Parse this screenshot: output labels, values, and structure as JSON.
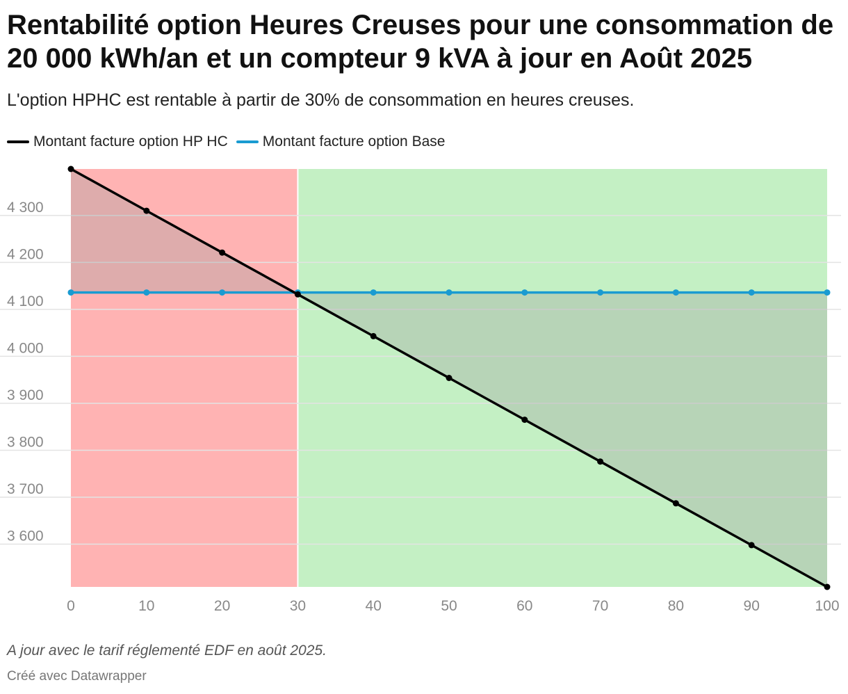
{
  "title": "Rentabilité option Heures Creuses pour une consommation de 20 000 kWh/an et un compteur 9 kVA à jour en Août 2025",
  "subtitle": "L'option HPHC est rentable à partir de 30% de consommation en heures creuses.",
  "notes": "A jour avec le tarif réglementé EDF en août 2025.",
  "credit": "Créé avec Datawrapper",
  "colors": {
    "hphc": "#000000",
    "base": "#1a9bd1",
    "zone_unprofitable": "#ffb3b3",
    "zone_profitable": "#c4f0c4",
    "between_fill": "rgba(160,160,160,0.35)",
    "grid": "#e3e3e3"
  },
  "chart_data": {
    "type": "line",
    "x": [
      0,
      10,
      20,
      30,
      40,
      50,
      60,
      70,
      80,
      90,
      100
    ],
    "series": [
      {
        "name": "Montant facture option HP HC",
        "values": [
          4399,
          4310,
          4221,
          4132,
          4043,
          3954,
          3865,
          3776,
          3687,
          3598,
          3509
        ]
      },
      {
        "name": "Montant facture option Base",
        "values": [
          4136,
          4136,
          4136,
          4136,
          4136,
          4136,
          4136,
          4136,
          4136,
          4136,
          4136
        ]
      }
    ],
    "x_ticks": [
      "0",
      "10",
      "20",
      "30",
      "40",
      "50",
      "60",
      "70",
      "80",
      "90",
      "100"
    ],
    "y_ticks": [
      {
        "value": 3600,
        "label": "3 600"
      },
      {
        "value": 3700,
        "label": "3 700"
      },
      {
        "value": 3800,
        "label": "3 800"
      },
      {
        "value": 3900,
        "label": "3 900"
      },
      {
        "value": 4000,
        "label": "4 000"
      },
      {
        "value": 4100,
        "label": "4 100"
      },
      {
        "value": 4200,
        "label": "4 200"
      },
      {
        "value": 4300,
        "label": "4 300"
      }
    ],
    "xlim": [
      0,
      100
    ],
    "ylim": [
      3509,
      4399
    ],
    "shaded_ranges": [
      {
        "from": 0,
        "to": 30,
        "meaning": "unprofitable"
      },
      {
        "from": 30,
        "to": 100,
        "meaning": "profitable"
      }
    ],
    "grid": true,
    "legend_position": "top-left"
  }
}
